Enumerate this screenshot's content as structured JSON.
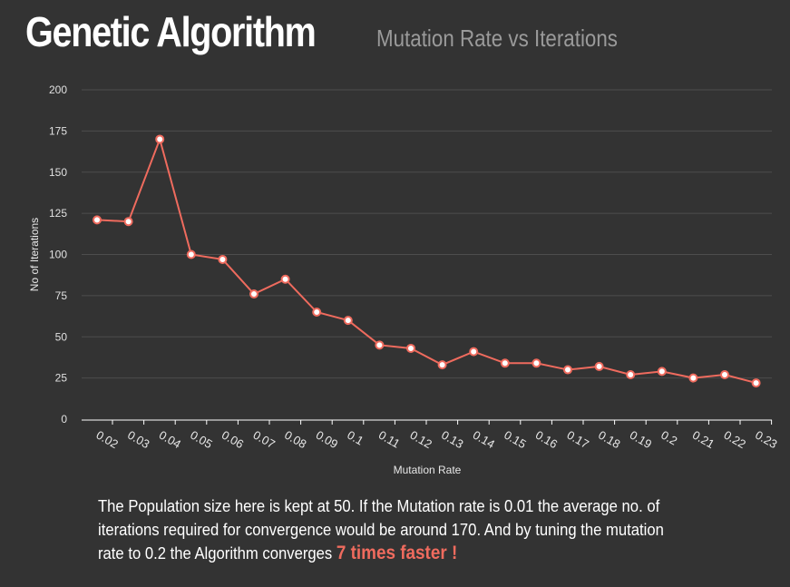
{
  "header": {
    "title": "Genetic Algorithm",
    "subtitle": "Mutation Rate vs Iterations"
  },
  "chart_data": {
    "type": "line",
    "title": "",
    "xlabel": "Mutation Rate",
    "ylabel": "No of Iterations",
    "categories": [
      "0.02",
      "0.03",
      "0.04",
      "0.05",
      "0.06",
      "0.07",
      "0.08",
      "0.09",
      "0.1",
      "0.11",
      "0.12",
      "0.13",
      "0.14",
      "0.15",
      "0.16",
      "0.17",
      "0.18",
      "0.19",
      "0.2",
      "0.21",
      "0.22",
      "0.23"
    ],
    "values": [
      121,
      120,
      170,
      100,
      97,
      76,
      85,
      65,
      60,
      45,
      43,
      33,
      41,
      34,
      34,
      30,
      32,
      27,
      29,
      25,
      27,
      22
    ],
    "ylim": [
      0,
      200
    ],
    "yticks": [
      0,
      25,
      50,
      75,
      100,
      125,
      150,
      175,
      200
    ],
    "grid": "horizontal",
    "line_color": "#ef6b5e"
  },
  "caption": {
    "text": "The Population size here is kept at 50. If the Mutation rate is  0.01 the average no. of iterations required for convergence would be around 170. And by tuning the mutation rate to 0.2 the Algorithm converges ",
    "highlight": "7 times faster !"
  }
}
